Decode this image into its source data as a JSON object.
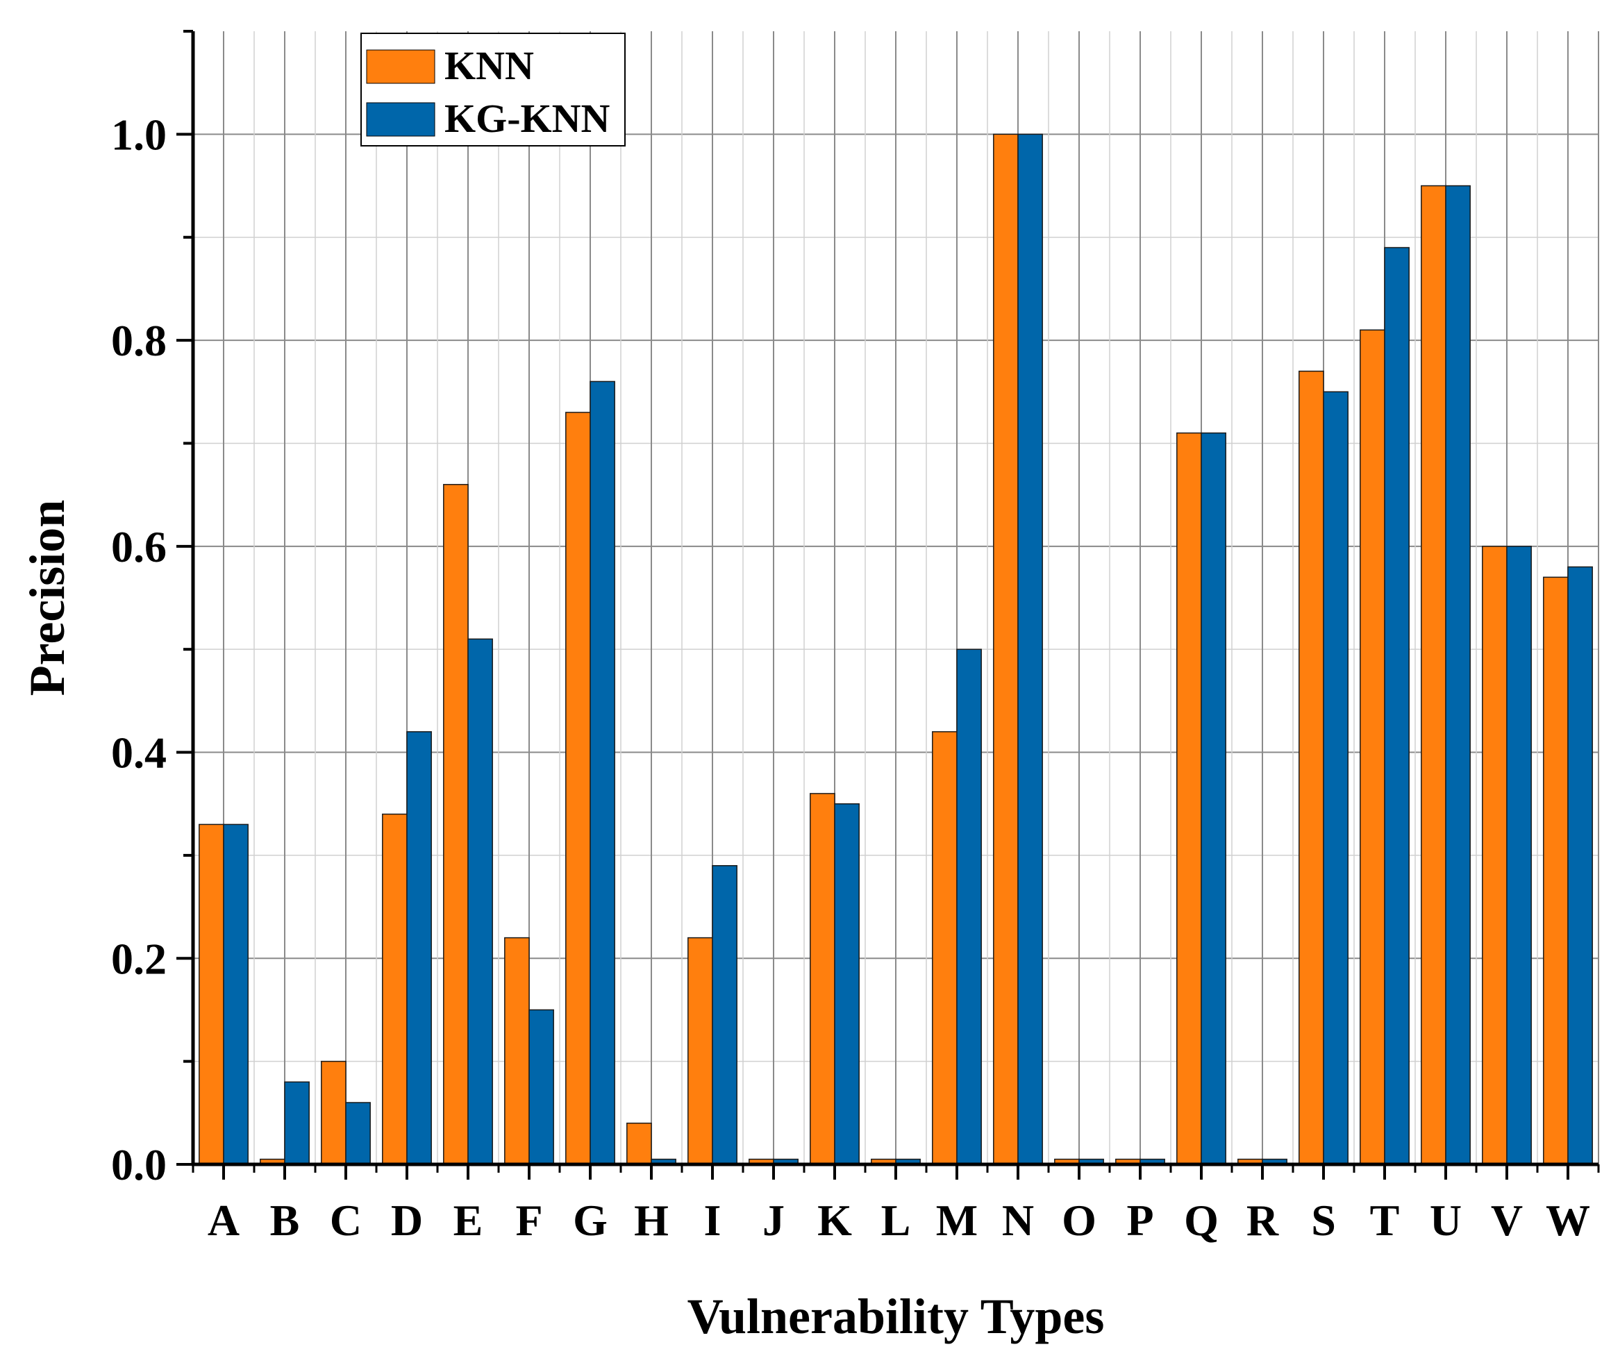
{
  "chart_data": {
    "type": "bar",
    "title": "",
    "xlabel": "Vulnerability Types",
    "ylabel": "Precision",
    "ylim": [
      0,
      1.1
    ],
    "yticks": [
      "0.0",
      "0.2",
      "0.4",
      "0.6",
      "0.8",
      "1.0"
    ],
    "grid": true,
    "legend_position": "top-left",
    "categories": [
      "A",
      "B",
      "C",
      "D",
      "E",
      "F",
      "G",
      "H",
      "I",
      "J",
      "K",
      "L",
      "M",
      "N",
      "O",
      "P",
      "Q",
      "R",
      "S",
      "T",
      "U",
      "V",
      "W"
    ],
    "series": [
      {
        "name": "KNN",
        "color": "#FF7F0E",
        "values": [
          0.33,
          0.005,
          0.1,
          0.34,
          0.66,
          0.22,
          0.73,
          0.04,
          0.22,
          0.005,
          0.36,
          0.005,
          0.42,
          1.0,
          0.005,
          0.005,
          0.71,
          0.005,
          0.77,
          0.81,
          0.95,
          0.6,
          0.57
        ]
      },
      {
        "name": "KG-KNN",
        "color": "#0066AA",
        "values": [
          0.33,
          0.08,
          0.06,
          0.42,
          0.51,
          0.15,
          0.76,
          0.005,
          0.29,
          0.005,
          0.35,
          0.005,
          0.5,
          1.0,
          0.005,
          0.005,
          0.71,
          0.005,
          0.75,
          0.89,
          0.95,
          0.6,
          0.58
        ]
      }
    ]
  }
}
